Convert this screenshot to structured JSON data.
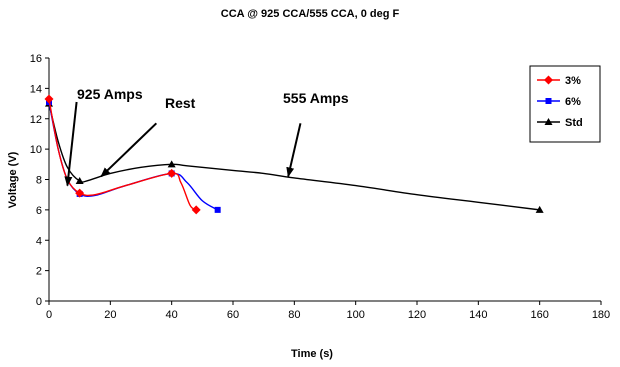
{
  "chart_data": {
    "type": "line",
    "title": "CCA @ 925 CCA/555 CCA, 0 deg F",
    "xlabel": "Time (s)",
    "ylabel": "Voltage (V)",
    "xlim": [
      0,
      180
    ],
    "ylim": [
      0,
      16
    ],
    "xticks": [
      0,
      20,
      40,
      60,
      80,
      100,
      120,
      140,
      160,
      180
    ],
    "yticks": [
      0,
      2,
      4,
      6,
      8,
      10,
      12,
      14,
      16
    ],
    "x_tick_labels": [
      "0",
      "20",
      "40",
      "60",
      "80",
      "100",
      "120",
      "140",
      "160",
      "180"
    ],
    "y_tick_labels": [
      "0",
      "2",
      "4",
      "6",
      "8",
      "10",
      "12",
      "14",
      "16"
    ],
    "grid": false,
    "legend_position": "top-right",
    "series": [
      {
        "name": "3%",
        "color": "#ff0000",
        "marker": "diamond",
        "points": [
          [
            0,
            13.3
          ],
          [
            3,
            10
          ],
          [
            6,
            8
          ],
          [
            10,
            7.1
          ],
          [
            15,
            7.0
          ],
          [
            25,
            7.6
          ],
          [
            40,
            8.4
          ],
          [
            43,
            7.8
          ],
          [
            46,
            6.3
          ],
          [
            48,
            6.0
          ]
        ],
        "marker_x": [
          0,
          10,
          40,
          48
        ]
      },
      {
        "name": "6%",
        "color": "#0000ff",
        "marker": "square",
        "points": [
          [
            0,
            13.1
          ],
          [
            3,
            10
          ],
          [
            6,
            8
          ],
          [
            10,
            7.05
          ],
          [
            15,
            6.95
          ],
          [
            25,
            7.6
          ],
          [
            40,
            8.4
          ],
          [
            45,
            7.8
          ],
          [
            50,
            6.6
          ],
          [
            55,
            6.0
          ]
        ],
        "marker_x": [
          0,
          10,
          40,
          55
        ]
      },
      {
        "name": "Std",
        "color": "#000000",
        "marker": "triangle",
        "points": [
          [
            0,
            13.0
          ],
          [
            3,
            10.5
          ],
          [
            6,
            8.8
          ],
          [
            10,
            7.9
          ],
          [
            13,
            7.95
          ],
          [
            20,
            8.4
          ],
          [
            30,
            8.8
          ],
          [
            40,
            9.0
          ],
          [
            45,
            8.9
          ],
          [
            60,
            8.6
          ],
          [
            70,
            8.4
          ],
          [
            80,
            8.1
          ],
          [
            100,
            7.6
          ],
          [
            120,
            7.0
          ],
          [
            140,
            6.5
          ],
          [
            160,
            6.0
          ]
        ],
        "marker_x": [
          0,
          10,
          40,
          160
        ]
      }
    ],
    "annotations": [
      {
        "text": "925 Amps",
        "arrow_from": [
          9,
          13.1
        ],
        "arrow_to": [
          6,
          7.6
        ]
      },
      {
        "text": "Rest",
        "arrow_from": [
          35,
          11.7
        ],
        "arrow_to": [
          17,
          8.2
        ]
      },
      {
        "text": "555 Amps",
        "arrow_from": [
          82,
          11.7
        ],
        "arrow_to": [
          78,
          8.2
        ]
      }
    ]
  }
}
